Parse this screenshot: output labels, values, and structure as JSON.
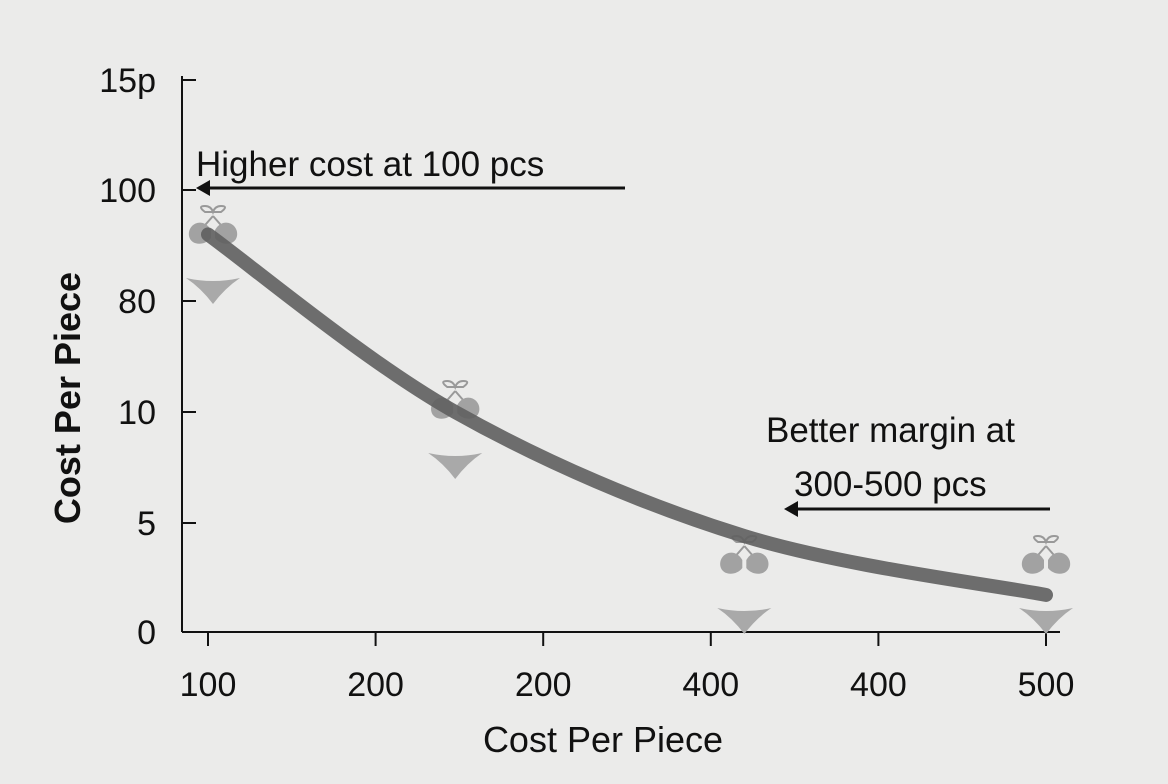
{
  "chart_data": {
    "type": "line",
    "title": "",
    "xlabel": "Cost Per Piece",
    "ylabel": "Cost Per Piece",
    "x_tick_labels": [
      "100",
      "200",
      "200",
      "400",
      "400",
      "500"
    ],
    "y_tick_labels": [
      "0",
      "5",
      "10",
      "80",
      "100",
      "15p"
    ],
    "xlim": [
      100,
      500
    ],
    "grid": false,
    "series": [
      {
        "x": [
          100,
          218,
          356,
          500
        ],
        "y": [
          92,
          10,
          4.4,
          1.7
        ],
        "color": "#5f5f5f",
        "marker_icon": "bikini-icon"
      }
    ],
    "annotations": [
      {
        "text": "Higher cost at 100 pcs",
        "arrow": "left"
      },
      {
        "text_lines": [
          "Better margin at",
          "300-500 pcs"
        ],
        "arrow": "left"
      }
    ]
  }
}
